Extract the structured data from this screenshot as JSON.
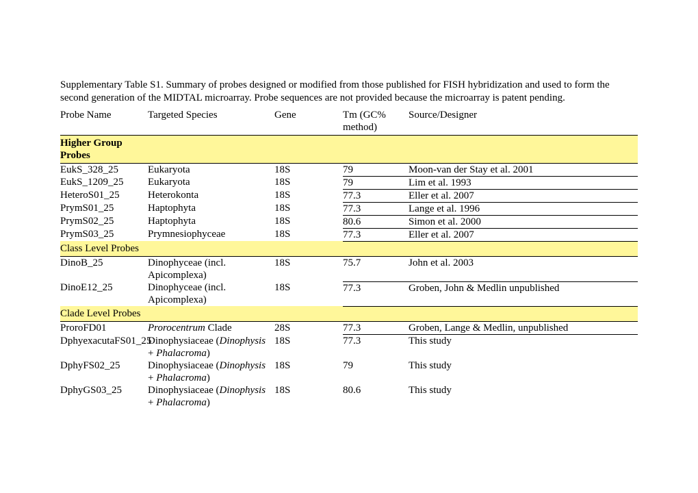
{
  "caption": "Supplementary Table S1. Summary of probes designed or modified from those published for FISH hybridization and used to form the second generation of the MIDTAL microarray. Probe sequences are not provided because the microarray is patent pending.",
  "columns": {
    "probe": "Probe Name",
    "species": "Targeted Species",
    "gene": "Gene",
    "tm": "Tm (GC% method)",
    "source": "Source/Designer"
  },
  "colors": {
    "highlight": "#fff79a",
    "border": "#000000",
    "text": "#000000",
    "background": "#ffffff"
  },
  "sections": {
    "higher": "Higher Group Probes",
    "class": "Class Level Probes",
    "clade": "Clade Level Probes"
  },
  "rows": {
    "r1": {
      "probe": "EukS_328_25",
      "species": "Eukaryota",
      "gene": "18S",
      "tm": "79",
      "source": "Moon-van der Stay et al. 2001"
    },
    "r2": {
      "probe": "EukS_1209_25",
      "species": "Eukaryota",
      "gene": "18S",
      "tm": "79",
      "source": "Lim et al. 1993"
    },
    "r3": {
      "probe": "HeteroS01_25",
      "species": "Heterokonta",
      "gene": "18S",
      "tm": "77.3",
      "source": "Eller et al. 2007"
    },
    "r4": {
      "probe": "PrymS01_25",
      "species": "Haptophyta",
      "gene": "18S",
      "tm": "77.3",
      "source": "Lange et al. 1996"
    },
    "r5": {
      "probe": "PrymS02_25",
      "species": "Haptophyta",
      "gene": "18S",
      "tm": "80.6",
      "source": "Simon et al. 2000"
    },
    "r6": {
      "probe": "PrymS03_25",
      "species": "Prymnesiophyceae",
      "gene": "18S",
      "tm": "77.3",
      "source": "Eller et al. 2007"
    },
    "r7": {
      "probe": "DinoB_25",
      "species": "Dinophyceae (incl. Apicomplexa)",
      "gene": "18S",
      "tm": "75.7",
      "source": "John et al. 2003"
    },
    "r8": {
      "probe": "DinoE12_25",
      "species": "Dinophyceae (incl. Apicomplexa)",
      "gene": "18S",
      "tm": "77.3",
      "source": "Groben, John & Medlin unpublished"
    },
    "r9": {
      "probe": "ProroFD01",
      "species_italic": "Prorocentrum",
      "species_after": " Clade",
      "gene": "28S",
      "tm": "77.3",
      "source": "Groben, Lange & Medlin, unpublished"
    },
    "r10": {
      "probe": "DphyexacutaFS01_25",
      "species_pre": "Dinophysiaceae (",
      "species_italic": "Dinophysis",
      "species_mid": " + ",
      "species_italic2": "Phalacroma",
      "species_after": ")",
      "gene": "18S",
      "tm": "77.3",
      "source": "This study"
    },
    "r11": {
      "probe": "DphyFS02_25",
      "species_pre": "Dinophysiaceae (",
      "species_italic": "Dinophysis",
      "species_mid": " + ",
      "species_italic2": "Phalacroma",
      "species_after": ")",
      "gene": "18S",
      "tm": "79",
      "source": "This study"
    },
    "r12": {
      "probe": "DphyGS03_25",
      "species_pre": "Dinophysiaceae (",
      "species_italic": "Dinophysis",
      "species_mid": " + ",
      "species_italic2": "Phalacroma",
      "species_after": ")",
      "gene": "18S",
      "tm": "80.6",
      "source": "This study"
    }
  }
}
